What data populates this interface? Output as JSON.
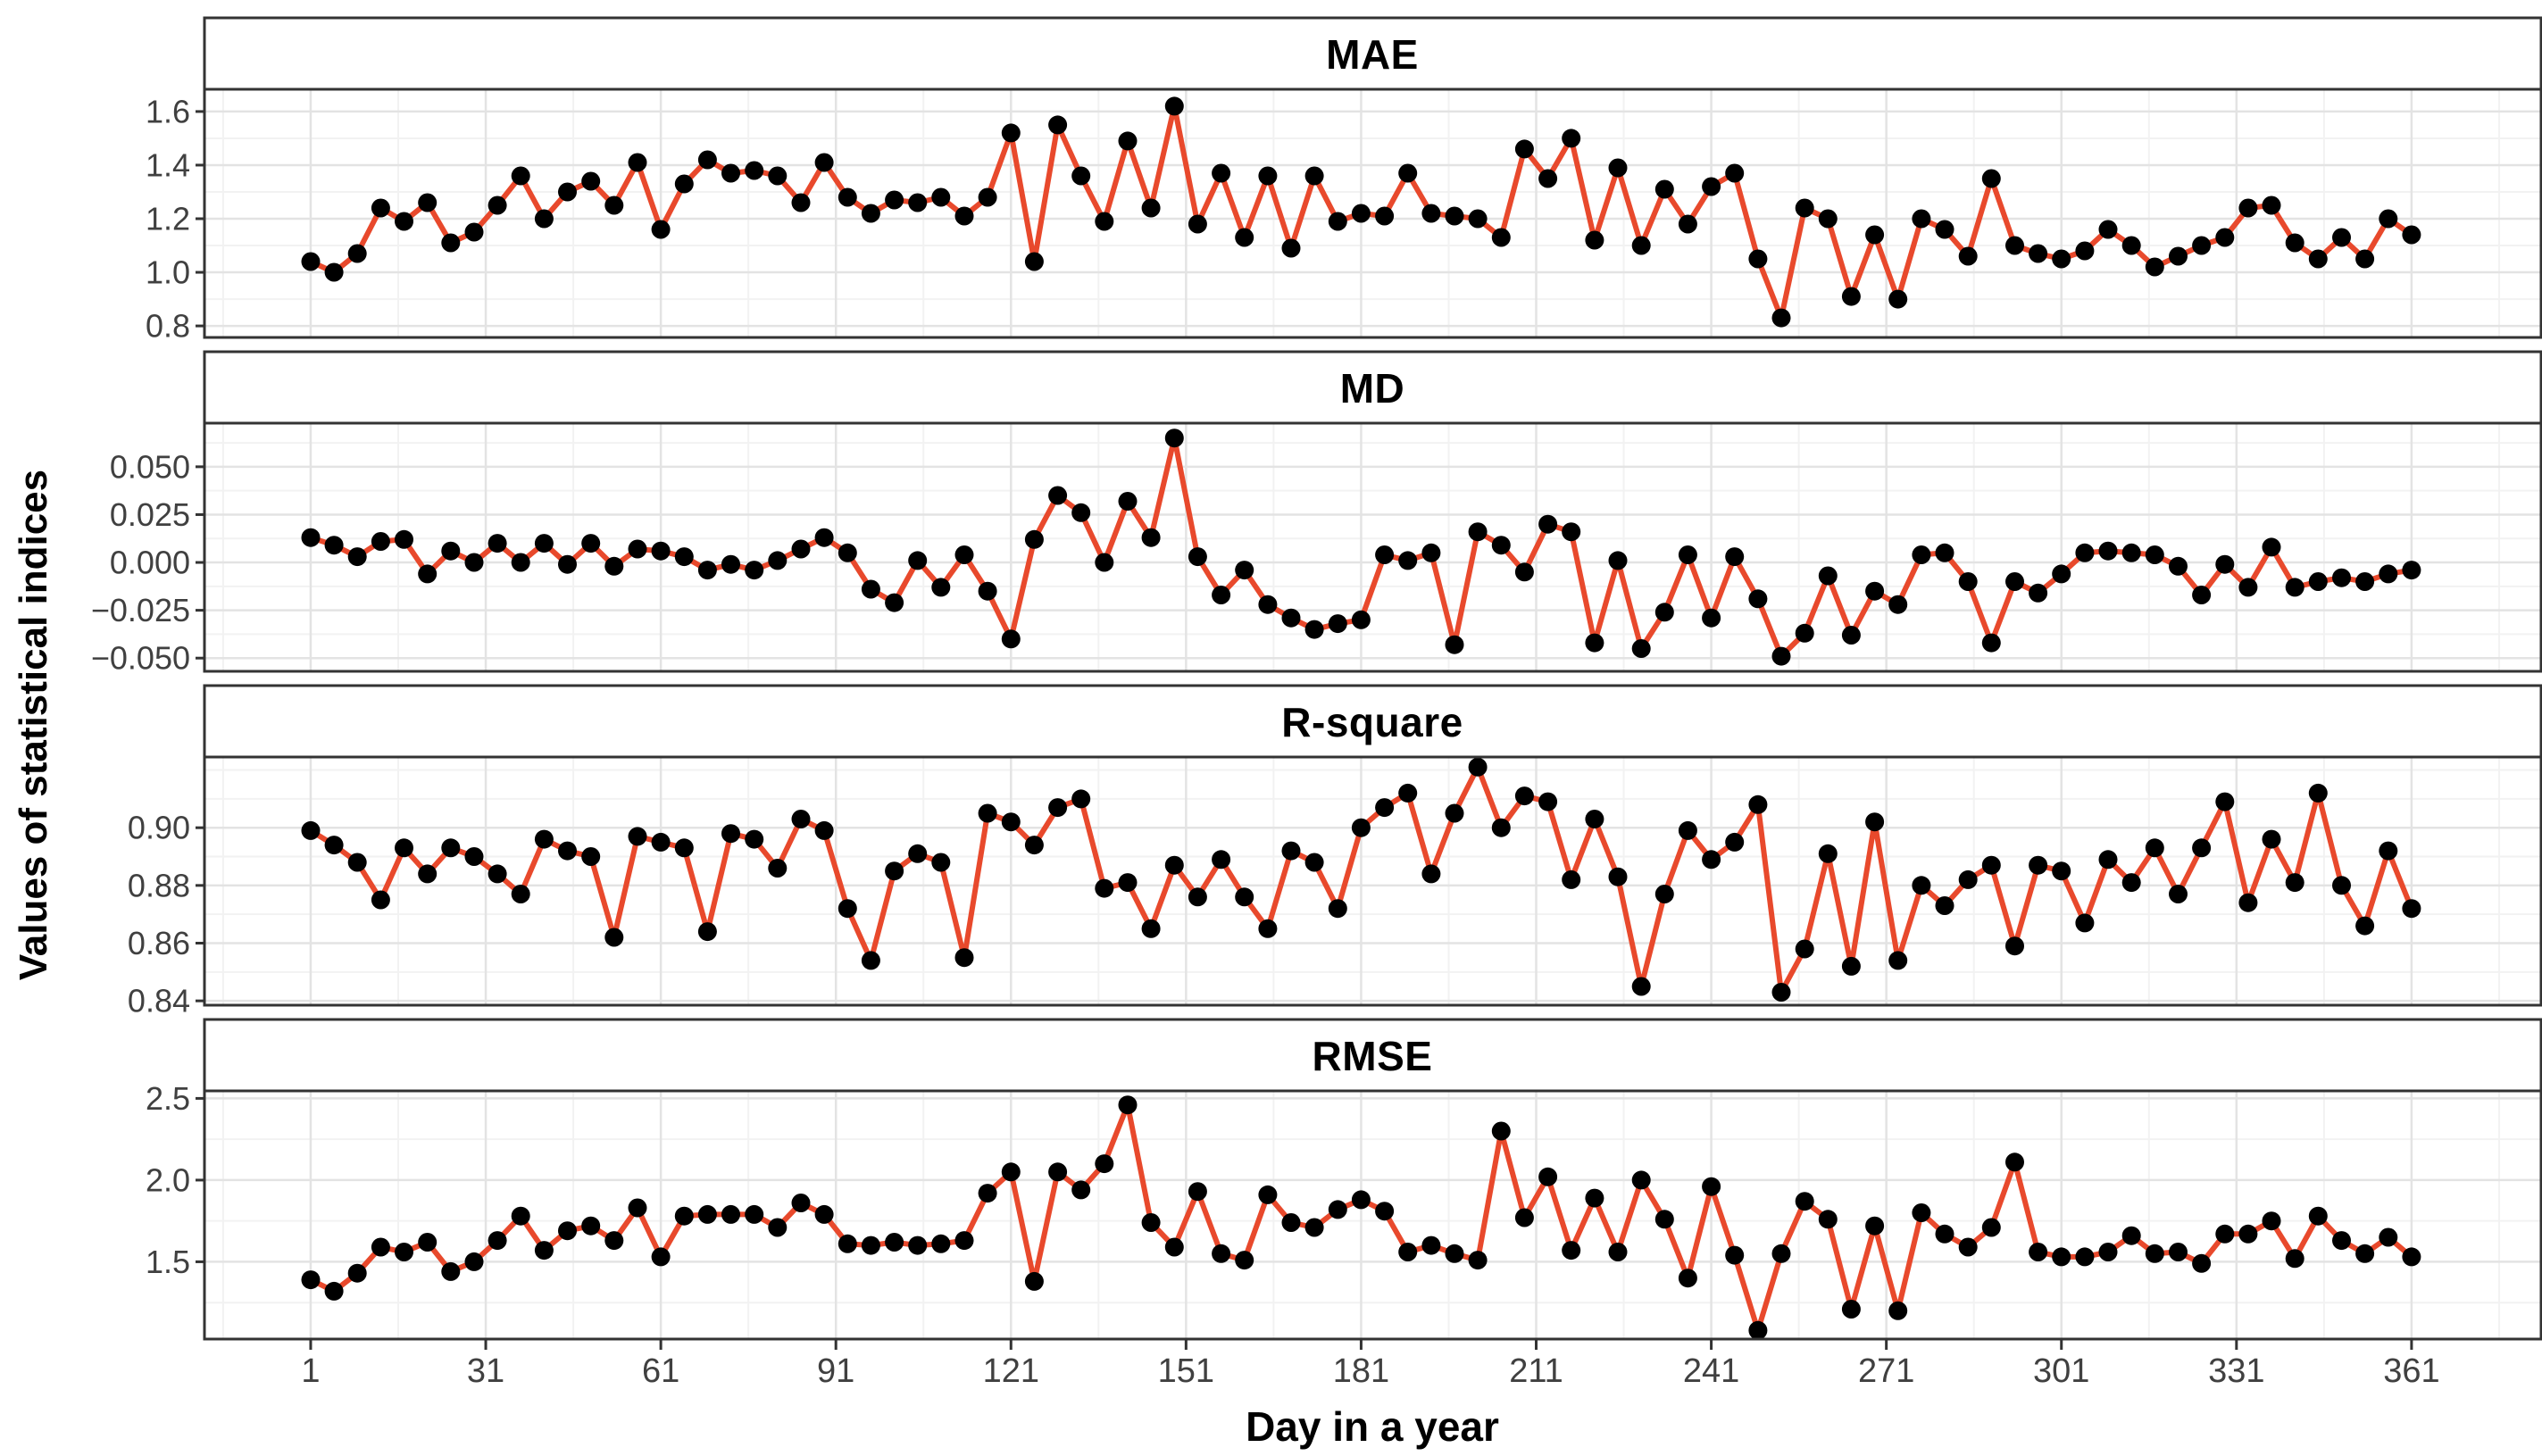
{
  "y_axis_title": "Values of statistical indices",
  "x_axis_title": "Day in a year",
  "colors": {
    "line": "#E8492C",
    "point": "#000000",
    "grid_major": "#E3E3E3",
    "grid_minor": "#F2F2F2",
    "panel_border": "#333333",
    "strip_fill": "#FFFFFF",
    "tick_text": "#404040",
    "background": "#FFFFFF"
  },
  "chart_data": {
    "type": "line",
    "title": "",
    "xlabel": "Day in a year",
    "ylabel": "Values of statistical indices",
    "legend": "none",
    "grid": "major+minor",
    "facets_shared_x": true,
    "x_domain": [
      -17.2,
      383.2
    ],
    "x_ticks": [
      1,
      31,
      61,
      91,
      121,
      151,
      181,
      211,
      241,
      271,
      301,
      331,
      361
    ],
    "x_minor": [
      -14,
      16,
      46,
      76,
      106,
      136,
      166,
      196,
      226,
      256,
      286,
      316,
      346,
      376
    ],
    "x": [
      1,
      5,
      9,
      13,
      17,
      21,
      25,
      29,
      33,
      37,
      41,
      45,
      49,
      53,
      57,
      61,
      65,
      69,
      73,
      77,
      81,
      85,
      89,
      93,
      97,
      101,
      105,
      109,
      113,
      117,
      121,
      125,
      129,
      133,
      137,
      141,
      145,
      149,
      153,
      157,
      161,
      165,
      169,
      173,
      177,
      181,
      185,
      189,
      193,
      197,
      201,
      205,
      209,
      213,
      217,
      221,
      225,
      229,
      233,
      237,
      241,
      245,
      249,
      253,
      257,
      261,
      265,
      269,
      273,
      277,
      281,
      285,
      289,
      293,
      297,
      301,
      305,
      309,
      313,
      317,
      321,
      325,
      329,
      333,
      337,
      341,
      345,
      349,
      353,
      357,
      361
    ],
    "panels": [
      {
        "title": "MAE",
        "ylim": [
          0.757,
          1.683
        ],
        "ytick_values": [
          0.8,
          1.0,
          1.2,
          1.4,
          1.6
        ],
        "ytick_labels": [
          "0.8",
          "1.0",
          "1.2",
          "1.4",
          "1.6"
        ],
        "y_minor": [
          0.9,
          1.1,
          1.3,
          1.5
        ],
        "values": [
          1.04,
          1.0,
          1.07,
          1.24,
          1.19,
          1.26,
          1.11,
          1.15,
          1.25,
          1.36,
          1.2,
          1.3,
          1.34,
          1.25,
          1.41,
          1.16,
          1.33,
          1.42,
          1.37,
          1.38,
          1.36,
          1.26,
          1.41,
          1.28,
          1.22,
          1.27,
          1.26,
          1.28,
          1.21,
          1.28,
          1.52,
          1.04,
          1.55,
          1.36,
          1.19,
          1.49,
          1.24,
          1.62,
          1.18,
          1.37,
          1.13,
          1.36,
          1.09,
          1.36,
          1.19,
          1.22,
          1.21,
          1.37,
          1.22,
          1.21,
          1.2,
          1.13,
          1.46,
          1.35,
          1.5,
          1.12,
          1.39,
          1.1,
          1.31,
          1.18,
          1.32,
          1.37,
          1.05,
          0.83,
          1.24,
          1.2,
          0.91,
          1.14,
          0.9,
          1.2,
          1.16,
          1.06,
          1.35,
          1.1,
          1.07,
          1.05,
          1.08,
          1.16,
          1.1,
          1.02,
          1.06,
          1.1,
          1.13,
          1.24,
          1.25,
          1.11,
          1.05,
          1.13,
          1.05,
          1.2,
          1.14
        ]
      },
      {
        "title": "MD",
        "ylim": [
          -0.0569,
          0.0728
        ],
        "ytick_values": [
          -0.05,
          -0.025,
          0.0,
          0.025,
          0.05
        ],
        "ytick_labels": [
          "−0.050",
          "−0.025",
          "0.000",
          "0.025",
          "0.050"
        ],
        "y_minor": [
          0.0625,
          0.0375,
          0.0125,
          -0.0125,
          -0.0375
        ],
        "values": [
          0.013,
          0.009,
          0.003,
          0.011,
          0.012,
          -0.006,
          0.006,
          0.0,
          0.01,
          0.0,
          0.01,
          -0.001,
          0.01,
          -0.002,
          0.007,
          0.006,
          0.003,
          -0.004,
          -0.001,
          -0.004,
          0.001,
          0.007,
          0.013,
          0.005,
          -0.014,
          -0.021,
          0.001,
          -0.013,
          0.004,
          -0.015,
          -0.04,
          0.012,
          0.035,
          0.026,
          0.0,
          0.032,
          0.013,
          0.065,
          0.003,
          -0.017,
          -0.004,
          -0.022,
          -0.029,
          -0.035,
          -0.032,
          -0.03,
          0.004,
          0.001,
          0.005,
          -0.043,
          0.016,
          0.009,
          -0.005,
          0.02,
          0.016,
          -0.042,
          0.001,
          -0.045,
          -0.026,
          0.004,
          -0.029,
          0.003,
          -0.019,
          -0.049,
          -0.037,
          -0.007,
          -0.038,
          -0.015,
          -0.022,
          0.004,
          0.005,
          -0.01,
          -0.042,
          -0.01,
          -0.016,
          -0.006,
          0.005,
          0.006,
          0.005,
          0.004,
          -0.002,
          -0.017,
          -0.001,
          -0.013,
          0.008,
          -0.013,
          -0.01,
          -0.008,
          -0.01,
          -0.006,
          -0.004
        ]
      },
      {
        "title": "R-square",
        "ylim": [
          0.8385,
          0.9245
        ],
        "ytick_values": [
          0.84,
          0.86,
          0.88,
          0.9
        ],
        "ytick_labels": [
          "0.84",
          "0.86",
          "0.88",
          "0.90"
        ],
        "y_minor": [
          0.85,
          0.87,
          0.89,
          0.91,
          0.92
        ],
        "values": [
          0.899,
          0.894,
          0.888,
          0.875,
          0.893,
          0.884,
          0.893,
          0.89,
          0.884,
          0.877,
          0.896,
          0.892,
          0.89,
          0.862,
          0.897,
          0.895,
          0.893,
          0.864,
          0.898,
          0.896,
          0.886,
          0.903,
          0.899,
          0.872,
          0.854,
          0.885,
          0.891,
          0.888,
          0.855,
          0.905,
          0.902,
          0.894,
          0.907,
          0.91,
          0.879,
          0.881,
          0.865,
          0.887,
          0.876,
          0.889,
          0.876,
          0.865,
          0.892,
          0.888,
          0.872,
          0.9,
          0.907,
          0.912,
          0.884,
          0.905,
          0.921,
          0.9,
          0.911,
          0.909,
          0.882,
          0.903,
          0.883,
          0.845,
          0.877,
          0.899,
          0.889,
          0.895,
          0.908,
          0.843,
          0.858,
          0.891,
          0.852,
          0.902,
          0.854,
          0.88,
          0.873,
          0.882,
          0.887,
          0.859,
          0.887,
          0.885,
          0.867,
          0.889,
          0.881,
          0.893,
          0.877,
          0.893,
          0.909,
          0.874,
          0.896,
          0.881,
          0.912,
          0.88,
          0.866,
          0.892,
          0.872
        ]
      },
      {
        "title": "RMSE",
        "ylim": [
          1.027,
          2.546
        ],
        "ytick_values": [
          1.5,
          2.0,
          2.5
        ],
        "ytick_labels": [
          "1.5",
          "2.0",
          "2.5"
        ],
        "y_minor": [
          1.25,
          1.75,
          2.25
        ],
        "values": [
          1.39,
          1.32,
          1.43,
          1.59,
          1.56,
          1.62,
          1.44,
          1.5,
          1.63,
          1.78,
          1.57,
          1.69,
          1.72,
          1.63,
          1.83,
          1.53,
          1.78,
          1.79,
          1.79,
          1.79,
          1.71,
          1.86,
          1.79,
          1.61,
          1.6,
          1.62,
          1.6,
          1.61,
          1.63,
          1.92,
          2.05,
          1.38,
          2.05,
          1.94,
          2.1,
          2.46,
          1.74,
          1.59,
          1.93,
          1.55,
          1.51,
          1.91,
          1.74,
          1.71,
          1.82,
          1.88,
          1.81,
          1.56,
          1.6,
          1.55,
          1.51,
          2.3,
          1.77,
          2.02,
          1.57,
          1.89,
          1.56,
          2.0,
          1.76,
          1.4,
          1.96,
          1.54,
          1.08,
          1.55,
          1.87,
          1.76,
          1.21,
          1.72,
          1.2,
          1.8,
          1.67,
          1.59,
          1.71,
          2.11,
          1.56,
          1.53,
          1.53,
          1.56,
          1.66,
          1.55,
          1.56,
          1.49,
          1.67,
          1.67,
          1.75,
          1.52,
          1.78,
          1.63,
          1.55,
          1.65,
          1.53
        ]
      }
    ]
  }
}
